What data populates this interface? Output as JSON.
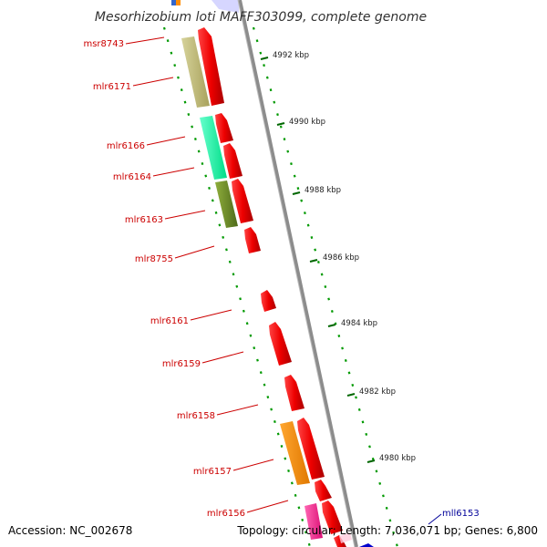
{
  "title": "Mesorhizobium loti MAFF303099, complete genome",
  "footer": {
    "accession": "Accession: NC_002678",
    "topology": "Topology: circular; Length: 7,036,071 bp; Genes: 6,800"
  },
  "gene_labels": [
    {
      "name": "msr8743",
      "strand": "forward"
    },
    {
      "name": "mlr6171",
      "strand": "forward"
    },
    {
      "name": "mlr6166",
      "strand": "forward"
    },
    {
      "name": "mlr6164",
      "strand": "forward"
    },
    {
      "name": "mlr6163",
      "strand": "forward"
    },
    {
      "name": "mlr8755",
      "strand": "forward"
    },
    {
      "name": "mlr6161",
      "strand": "forward"
    },
    {
      "name": "mlr6159",
      "strand": "forward"
    },
    {
      "name": "mlr6158",
      "strand": "forward"
    },
    {
      "name": "mlr6157",
      "strand": "forward"
    },
    {
      "name": "mlr6156",
      "strand": "forward"
    },
    {
      "name": "mll6153",
      "strand": "reverse"
    }
  ],
  "scale_ticks": [
    {
      "label": "4992 kbp"
    },
    {
      "label": "4990 kbp"
    },
    {
      "label": "4988 kbp"
    },
    {
      "label": "4986 kbp"
    },
    {
      "label": "4984 kbp"
    },
    {
      "label": "4982 kbp"
    },
    {
      "label": "4980 kbp"
    }
  ],
  "colors": {
    "backbone": "#8c8c8c",
    "forward_gene": "#ff0000",
    "reverse_gene": "#0000cc",
    "label_forward": "#cc0000",
    "label_reverse": "#000099",
    "gc_dots": "#009900",
    "cog_tan": "#bdb76b",
    "cog_aqua": "#33ffaa",
    "cog_olive": "#6b8e23",
    "cog_orange": "#ff8c00",
    "cog_pink": "#ff3399"
  }
}
